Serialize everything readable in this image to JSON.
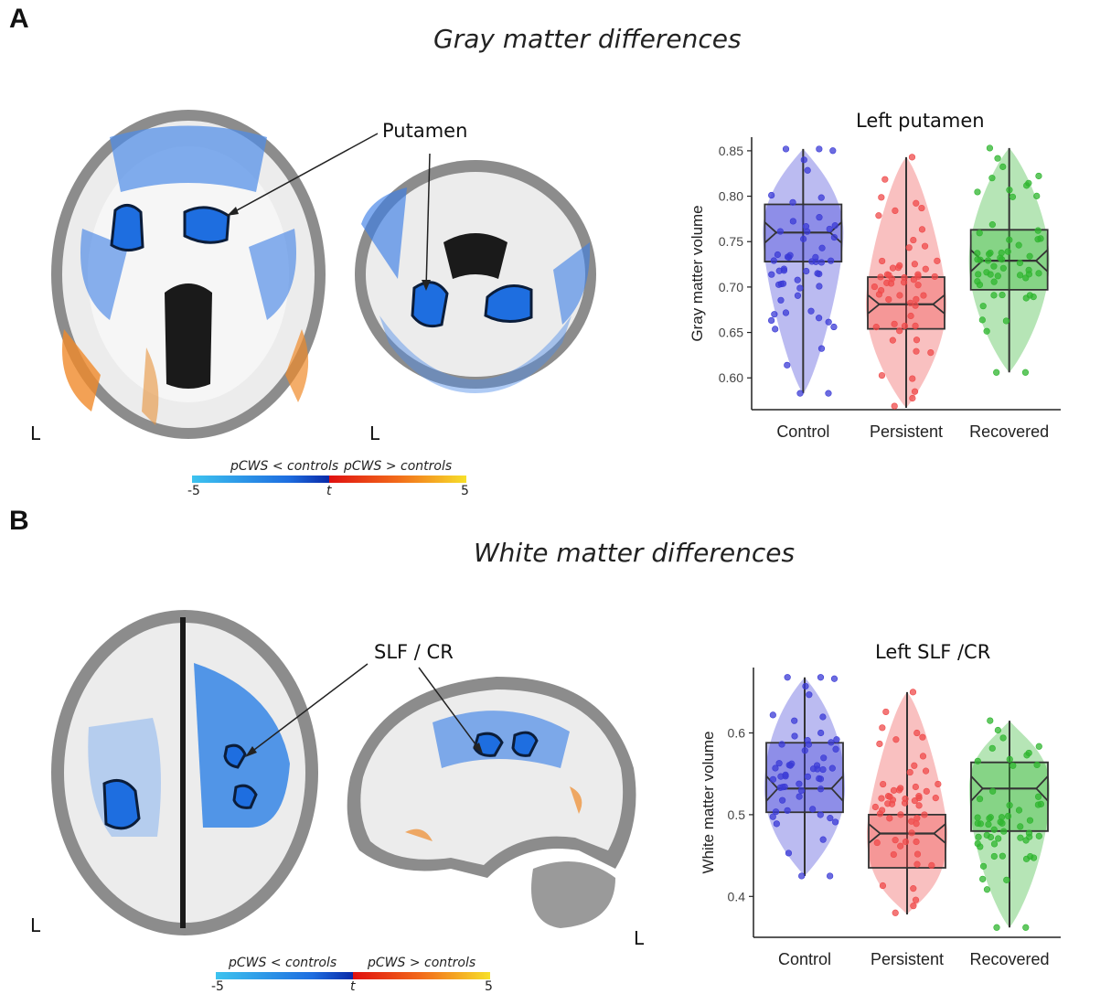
{
  "panel_a": {
    "letter": "A",
    "title": "Gray matter differences",
    "callout": "Putamen",
    "orientation_axial": "L",
    "orientation_coronal": "L",
    "colorbar": {
      "left_label": "pCWS < controls",
      "right_label": "pCWS > controls",
      "min": "-5",
      "mid": "t",
      "max": "5"
    }
  },
  "panel_b": {
    "letter": "B",
    "title": "White matter differences",
    "callout": "SLF / CR",
    "orientation_axial": "L",
    "orientation_sagittal": "L",
    "colorbar": {
      "left_label": "pCWS < controls",
      "right_label": "pCWS > controls",
      "min": "-5",
      "mid": "t",
      "max": "5"
    }
  },
  "colors": {
    "control": "#3b3bd6",
    "persistent": "#ef4b4b",
    "recovered": "#2fb52f",
    "negative": "#1f6fd6",
    "positive": "#f07a1a"
  },
  "chart_data": [
    {
      "type": "box",
      "title": "Left putamen",
      "ylabel": "Gray matter volume",
      "xlabel": "",
      "ylim": [
        0.565,
        0.865
      ],
      "yticks": [
        "0.60",
        "0.65",
        "0.70",
        "0.75",
        "0.80",
        "0.85"
      ],
      "categories": [
        "Control",
        "Persistent",
        "Recovered"
      ],
      "groups": [
        {
          "name": "Control",
          "min": 0.583,
          "q1": 0.728,
          "median": 0.76,
          "q3": 0.791,
          "max": 0.852
        },
        {
          "name": "Persistent",
          "min": 0.567,
          "q1": 0.654,
          "median": 0.681,
          "q3": 0.711,
          "max": 0.843
        },
        {
          "name": "Recovered",
          "min": 0.606,
          "q1": 0.697,
          "median": 0.729,
          "q3": 0.763,
          "max": 0.853
        }
      ]
    },
    {
      "type": "box",
      "title": "Left SLF /CR",
      "ylabel": "White matter volume",
      "xlabel": "",
      "ylim": [
        0.35,
        0.68
      ],
      "yticks": [
        "0.4",
        "0.5",
        "0.6"
      ],
      "categories": [
        "Control",
        "Persistent",
        "Recovered"
      ],
      "groups": [
        {
          "name": "Control",
          "min": 0.425,
          "q1": 0.503,
          "median": 0.532,
          "q3": 0.588,
          "max": 0.668
        },
        {
          "name": "Persistent",
          "min": 0.378,
          "q1": 0.435,
          "median": 0.477,
          "q3": 0.5,
          "max": 0.65
        },
        {
          "name": "Recovered",
          "min": 0.362,
          "q1": 0.48,
          "median": 0.532,
          "q3": 0.564,
          "max": 0.615
        }
      ]
    }
  ]
}
